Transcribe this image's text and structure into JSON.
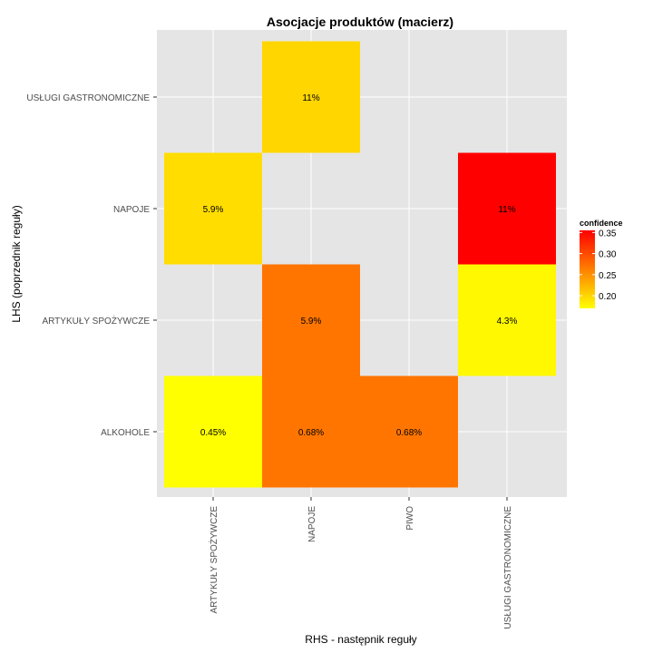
{
  "chart_data": {
    "type": "heatmap",
    "title": "Asocjacje produktów (macierz)",
    "xlabel": "RHS - następnik reguły",
    "ylabel": "LHS (poprzednik reguły)",
    "x_categories": [
      "ARTYKUŁY SPOŻYWCZE",
      "NAPOJE",
      "PIWO",
      "USŁUGI GASTRONOMICZNE"
    ],
    "y_categories": [
      "ALKOHOLE",
      "ARTYKUŁY SPOŻYWCZE",
      "NAPOJE",
      "USŁUGI GASTRONOMICZNE"
    ],
    "cells": [
      {
        "x": "ARTYKUŁY SPOŻYWCZE",
        "y": "ALKOHOLE",
        "confidence": 0.17,
        "label": "0.45%"
      },
      {
        "x": "NAPOJE",
        "y": "ALKOHOLE",
        "confidence": 0.27,
        "label": "0.68%"
      },
      {
        "x": "PIWO",
        "y": "ALKOHOLE",
        "confidence": 0.27,
        "label": "0.68%"
      },
      {
        "x": "NAPOJE",
        "y": "ARTYKUŁY SPOŻYWCZE",
        "confidence": 0.27,
        "label": "5.9%"
      },
      {
        "x": "USŁUGI GASTRONOMICZNE",
        "y": "ARTYKUŁY SPOŻYWCZE",
        "confidence": 0.175,
        "label": "4.3%"
      },
      {
        "x": "ARTYKUŁY SPOŻYWCZE",
        "y": "NAPOJE",
        "confidence": 0.195,
        "label": "5.9%"
      },
      {
        "x": "USŁUGI GASTRONOMICZNE",
        "y": "NAPOJE",
        "confidence": 0.355,
        "label": "11%"
      },
      {
        "x": "NAPOJE",
        "y": "USŁUGI GASTRONOMICZNE",
        "confidence": 0.2,
        "label": "11%"
      }
    ],
    "legend": {
      "title": "confidence",
      "range": [
        0.17,
        0.355
      ],
      "ticks": [
        0.2,
        0.25,
        0.3,
        0.35
      ],
      "tick_labels": [
        "0.20",
        "0.25",
        "0.30",
        "0.35"
      ],
      "low_color": "#ffff00",
      "high_color": "#ff0000"
    },
    "grid": true,
    "panel_background": "#e5e5e5",
    "grid_color": "#ffffff"
  }
}
